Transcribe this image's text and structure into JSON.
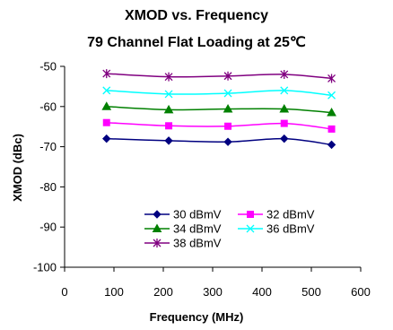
{
  "chart_data": {
    "type": "line",
    "title": "XMOD vs. Frequency",
    "subtitle": "79 Channel Flat Loading at 25℃",
    "xlabel": "Frequency (MHz)",
    "ylabel": "XMOD (dBc)",
    "xlim": [
      0,
      600
    ],
    "ylim": [
      -100,
      -50
    ],
    "x_ticks": [
      0,
      100,
      200,
      300,
      400,
      500,
      600
    ],
    "y_ticks": [
      -50,
      -60,
      -70,
      -80,
      -90,
      -100
    ],
    "grid": false,
    "legend_placement": "center-right",
    "x": [
      85,
      211,
      331,
      445,
      541
    ],
    "series": [
      {
        "name": "30 dBmV",
        "values": [
          -68,
          -68.5,
          -68.8,
          -68,
          -69.5
        ],
        "color": "#000080",
        "marker": "diamond"
      },
      {
        "name": "32 dBmV",
        "values": [
          -64,
          -64.8,
          -64.9,
          -64.2,
          -65.6
        ],
        "color": "#ff00ff",
        "marker": "square"
      },
      {
        "name": "34 dBmV",
        "values": [
          -60,
          -60.8,
          -60.6,
          -60.6,
          -61.5
        ],
        "color": "#008000",
        "marker": "triangle"
      },
      {
        "name": "36 dBmV",
        "values": [
          -56,
          -56.9,
          -56.7,
          -56,
          -57.2
        ],
        "color": "#00ffff",
        "marker": "x"
      },
      {
        "name": "38 dBmV",
        "values": [
          -51.8,
          -52.6,
          -52.4,
          -52,
          -53
        ],
        "color": "#800080",
        "marker": "star"
      }
    ]
  }
}
